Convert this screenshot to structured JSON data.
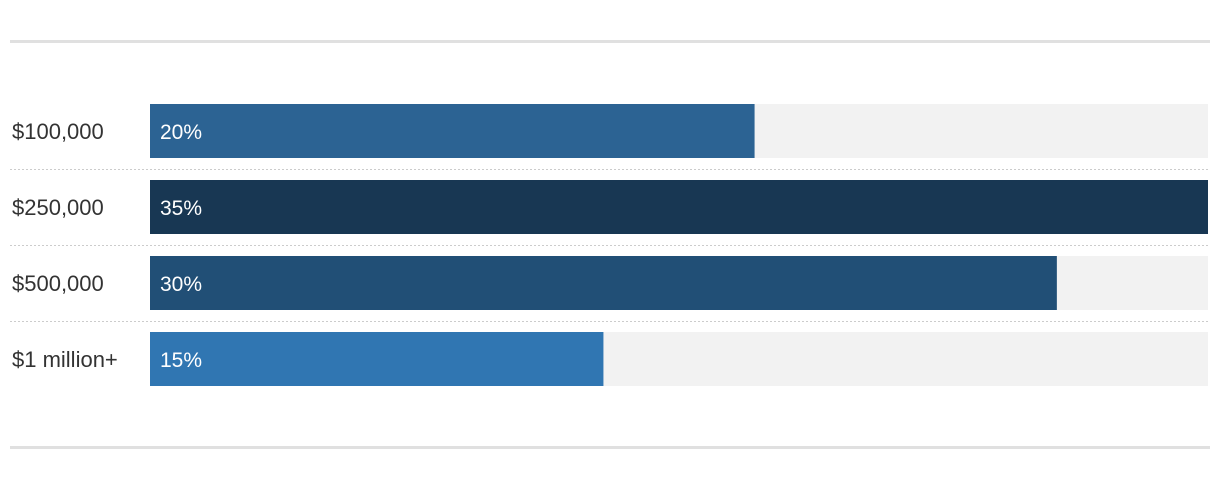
{
  "chart_data": {
    "type": "bar",
    "orientation": "horizontal",
    "categories": [
      "$100,000",
      "$250,000",
      "$500,000",
      "$1 million+"
    ],
    "values": [
      20,
      35,
      30,
      15
    ],
    "value_labels": [
      "20%",
      "35%",
      "30%",
      "15%"
    ],
    "unit": "%",
    "xlim": [
      0,
      35
    ],
    "bar_colors": [
      "#2c6393",
      "#183753",
      "#214f76",
      "#3076b2"
    ],
    "track_color": "#f2f2f2",
    "title": "",
    "xlabel": "",
    "ylabel": "",
    "legend": "none",
    "grid": false
  }
}
